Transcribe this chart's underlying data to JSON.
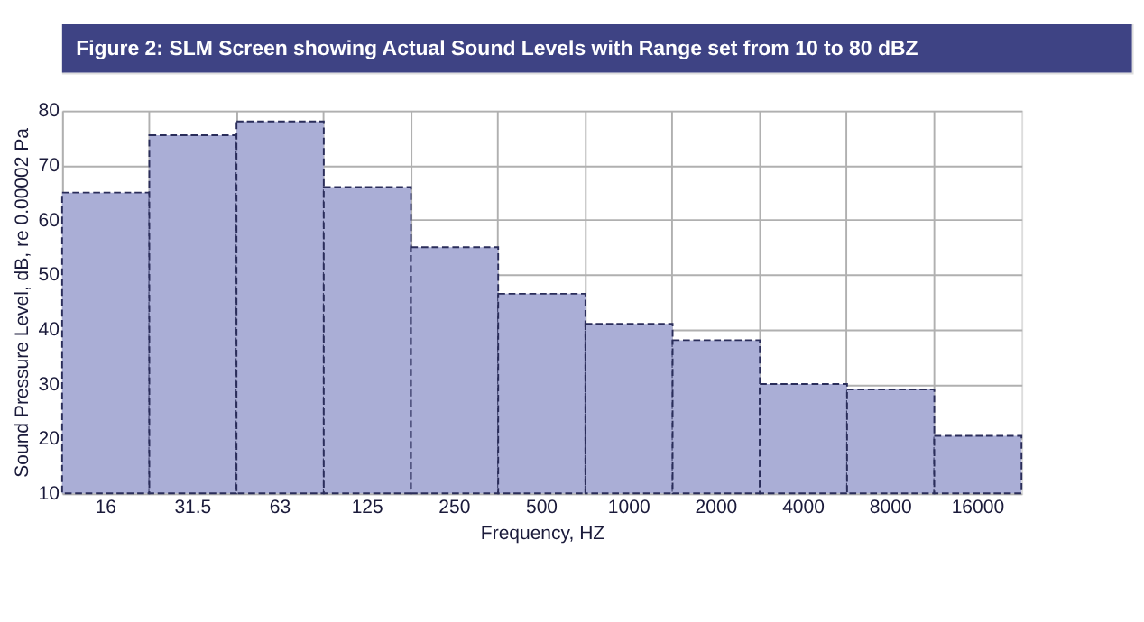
{
  "chart_data": {
    "type": "bar",
    "title": "Figure 2: SLM Screen showing Actual Sound Levels with Range set from 10 to 80 dBZ",
    "xlabel": "Frequency, HZ",
    "ylabel": "Sound Pressure Level, dB, re 0.00002 Pa",
    "categories": [
      "16",
      "31.5",
      "63",
      "125",
      "250",
      "500",
      "1000",
      "2000",
      "4000",
      "8000",
      "16000"
    ],
    "values": [
      65,
      75.5,
      78,
      66,
      55,
      46.5,
      41,
      38,
      30,
      29,
      20.5
    ],
    "color": "#aaaed6",
    "ylim": [
      10,
      80
    ],
    "yticks": [
      10,
      20,
      30,
      40,
      50,
      60,
      70,
      80
    ],
    "grid": true,
    "line_style": "dashed"
  }
}
